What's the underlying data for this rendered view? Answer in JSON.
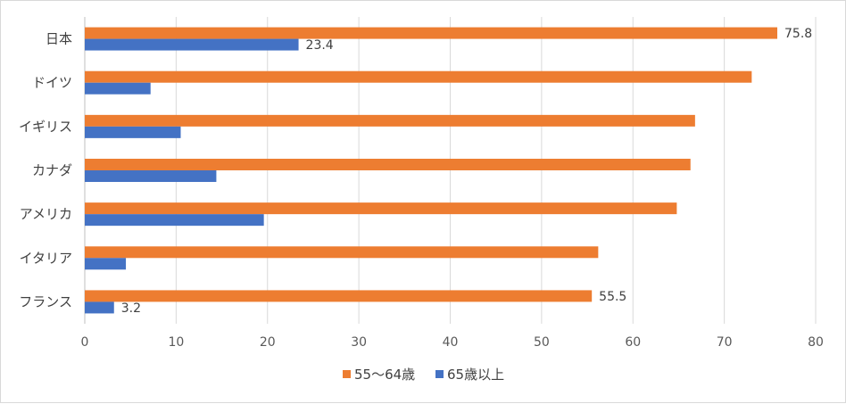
{
  "chart_data": {
    "type": "bar",
    "orientation": "horizontal",
    "categories": [
      "日本",
      "ドイツ",
      "イギリス",
      "カナダ",
      "アメリカ",
      "イタリア",
      "フランス"
    ],
    "series": [
      {
        "name": "55〜64歳",
        "color": "#ED7D31",
        "values": [
          75.8,
          73.0,
          66.8,
          66.3,
          64.8,
          56.2,
          55.5
        ],
        "labels": [
          "75.8",
          "",
          "",
          "",
          "",
          "",
          "55.5"
        ]
      },
      {
        "name": "65歳以上",
        "color": "#4472C4",
        "values": [
          23.4,
          7.2,
          10.5,
          14.4,
          19.6,
          4.5,
          3.2
        ],
        "labels": [
          "23.4",
          "",
          "",
          "",
          "",
          "",
          "3.2"
        ]
      }
    ],
    "xlim": [
      0,
      80
    ],
    "xticks": [
      "0",
      "10",
      "20",
      "30",
      "40",
      "50",
      "60",
      "70",
      "80"
    ],
    "grid": true,
    "legend": "bottom",
    "title": "",
    "xlabel": "",
    "ylabel": ""
  }
}
